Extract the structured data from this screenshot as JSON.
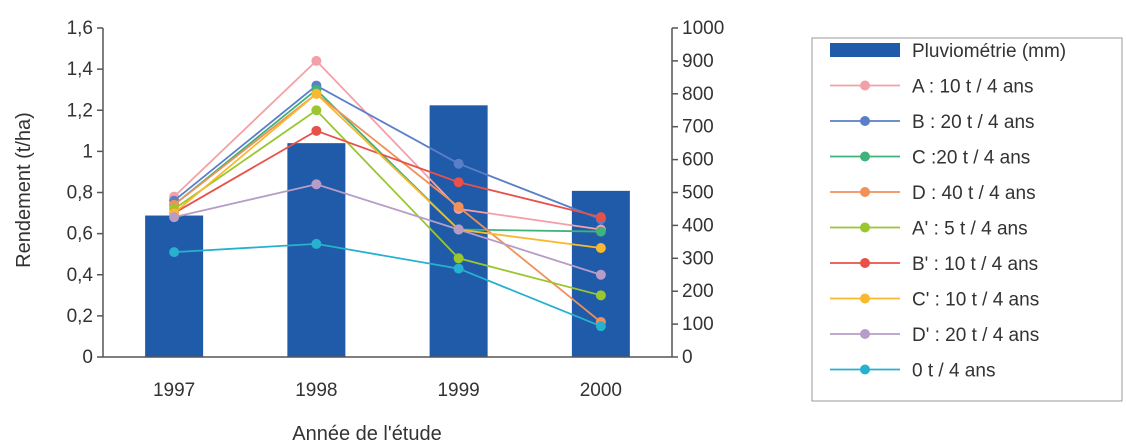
{
  "chart_data": {
    "type": "bar",
    "categories": [
      "1997",
      "1998",
      "1999",
      "2000"
    ],
    "xlabel": "Année de l'étude",
    "ylabel": "Rendement (t/ha)",
    "ylim": [
      0,
      1.6
    ],
    "y2lim": [
      0,
      1000
    ],
    "yticks": [
      "0",
      "0,2",
      "0,4",
      "0,6",
      "0,8",
      "1",
      "1,2",
      "1,4",
      "1,6"
    ],
    "y2ticks": [
      "0",
      "100",
      "200",
      "300",
      "400",
      "500",
      "600",
      "700",
      "800",
      "900",
      "1000"
    ],
    "grid": false,
    "legend_position": "right",
    "bar_series": {
      "name": "Pluviométrie (mm)",
      "axis": "right",
      "color": "#1f5ba8",
      "values": [
        430,
        650,
        765,
        505
      ]
    },
    "series": [
      {
        "name": "A  : 10 t / 4 ans",
        "color": "#f4a0a8",
        "values": [
          0.78,
          1.44,
          0.72,
          0.62
        ]
      },
      {
        "name": "B  : 20 t / 4 ans",
        "color": "#5a7ec8",
        "values": [
          0.76,
          1.32,
          0.94,
          0.67
        ]
      },
      {
        "name": "C :20 t / 4 ans",
        "color": "#3fb37a",
        "values": [
          0.74,
          1.3,
          0.62,
          0.61
        ]
      },
      {
        "name": "D  : 40 t / 4 ans",
        "color": "#f0905a",
        "values": [
          0.74,
          1.28,
          0.73,
          0.17
        ]
      },
      {
        "name": "A'  : 5 t / 4 ans",
        "color": "#9ac62e",
        "values": [
          0.72,
          1.2,
          0.48,
          0.3
        ]
      },
      {
        "name": "B'  : 10 t / 4 ans",
        "color": "#e8504a",
        "values": [
          0.7,
          1.1,
          0.85,
          0.68
        ]
      },
      {
        "name": "C' : 10 t / 4 ans",
        "color": "#f8b830",
        "values": [
          0.7,
          1.28,
          0.62,
          0.53
        ]
      },
      {
        "name": "D'  : 20 t / 4 ans",
        "color": "#b89cc8",
        "values": [
          0.68,
          0.84,
          0.62,
          0.4
        ]
      },
      {
        "name": "0 t / 4 ans",
        "color": "#28b0d0",
        "values": [
          0.51,
          0.55,
          0.43,
          0.15
        ]
      }
    ]
  }
}
